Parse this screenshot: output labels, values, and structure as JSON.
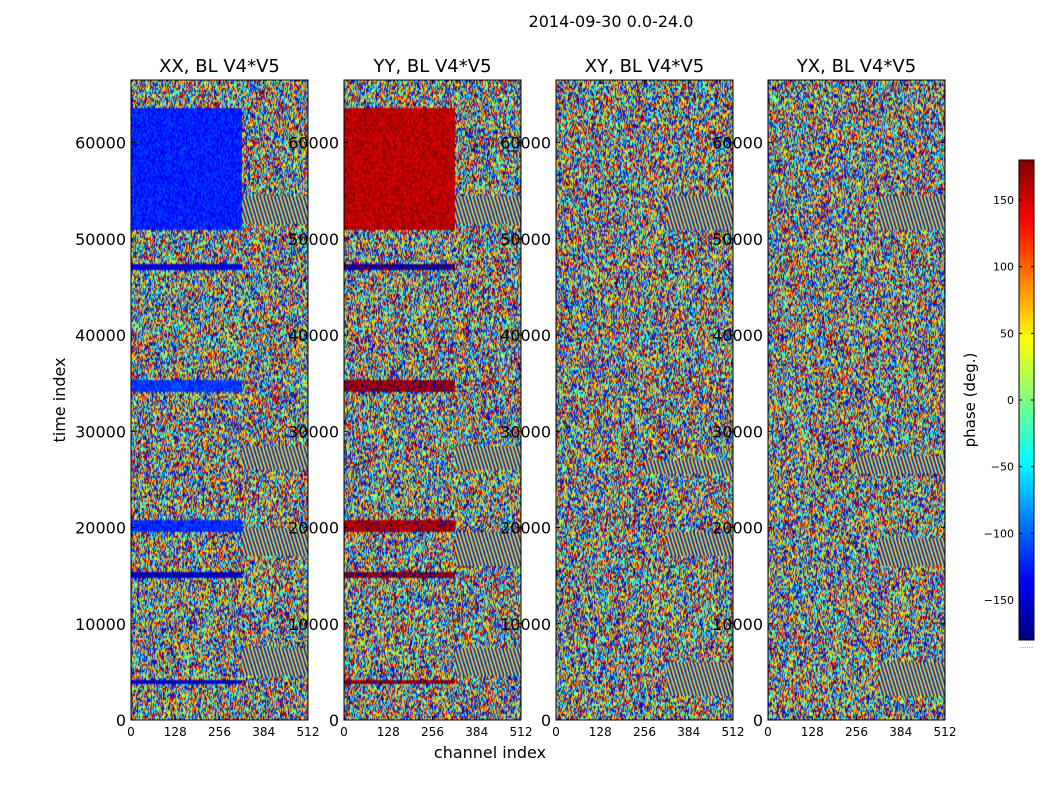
{
  "figure": {
    "suptitle": "2014-09-30 0.0-24.0"
  },
  "chart_data": {
    "type": "heatmap",
    "title": "2014-09-30 0.0-24.0",
    "xlabel": "channel index",
    "ylabel": "time index",
    "xlim": [
      0,
      512
    ],
    "ylim": [
      0,
      66500
    ],
    "x_ticks": [
      0,
      128,
      256,
      384,
      512
    ],
    "y_ticks": [
      0,
      10000,
      20000,
      30000,
      40000,
      50000,
      60000
    ],
    "colorbar": {
      "label": "phase (deg.)",
      "range": [
        -180,
        180
      ],
      "ticks": [
        -150,
        -100,
        -50,
        0,
        50,
        100,
        150
      ],
      "colormap": [
        "#00007f",
        "#0000ff",
        "#007fff",
        "#00ffff",
        "#7fff7f",
        "#ffff00",
        "#ff7f00",
        "#ff0000",
        "#7f0000"
      ],
      "footer_text": "......"
    },
    "panels": [
      {
        "title": "XX, BL V4*V5",
        "coherent_bands": [
          {
            "t0": 51000,
            "t1": 63500,
            "ch0": 0,
            "ch1": 320,
            "phase": -125
          },
          {
            "t0": 34000,
            "t1": 35300,
            "ch0": 0,
            "ch1": 320,
            "phase": -115
          },
          {
            "t0": 19500,
            "t1": 20800,
            "ch0": 0,
            "ch1": 320,
            "phase": -120
          },
          {
            "t0": 14800,
            "t1": 15300,
            "ch0": 0,
            "ch1": 320,
            "phase": -160
          },
          {
            "t0": 46800,
            "t1": 47300,
            "ch0": 0,
            "ch1": 320,
            "phase": -150
          },
          {
            "t0": 3800,
            "t1": 4200,
            "ch0": 0,
            "ch1": 320,
            "phase": -155
          }
        ],
        "fringe_bands": [
          {
            "t0": 51500,
            "t1": 54500,
            "ch0": 320,
            "ch1": 512
          },
          {
            "t0": 26000,
            "t1": 28500,
            "ch0": 320,
            "ch1": 512
          },
          {
            "t0": 17000,
            "t1": 20000,
            "ch0": 320,
            "ch1": 512
          },
          {
            "t0": 4500,
            "t1": 7500,
            "ch0": 320,
            "ch1": 512
          }
        ]
      },
      {
        "title": "YY, BL V4*V5",
        "coherent_bands": [
          {
            "t0": 51000,
            "t1": 63500,
            "ch0": 0,
            "ch1": 320,
            "phase": 160
          },
          {
            "t0": 34000,
            "t1": 35300,
            "ch0": 0,
            "ch1": 320,
            "phase": 170
          },
          {
            "t0": 19500,
            "t1": 20800,
            "ch0": 0,
            "ch1": 320,
            "phase": 165
          },
          {
            "t0": 14800,
            "t1": 15300,
            "ch0": 0,
            "ch1": 320,
            "phase": 175
          },
          {
            "t0": 46800,
            "t1": 47300,
            "ch0": 0,
            "ch1": 320,
            "phase": -170
          },
          {
            "t0": 3800,
            "t1": 4200,
            "ch0": 0,
            "ch1": 320,
            "phase": 170
          }
        ],
        "fringe_bands": [
          {
            "t0": 51500,
            "t1": 54500,
            "ch0": 320,
            "ch1": 512
          },
          {
            "t0": 26000,
            "t1": 28500,
            "ch0": 320,
            "ch1": 512
          },
          {
            "t0": 16000,
            "t1": 19500,
            "ch0": 320,
            "ch1": 512
          },
          {
            "t0": 4500,
            "t1": 7500,
            "ch0": 320,
            "ch1": 512
          }
        ]
      },
      {
        "title": "XY, BL V4*V5",
        "coherent_bands": [],
        "fringe_bands": [
          {
            "t0": 51000,
            "t1": 54500,
            "ch0": 320,
            "ch1": 512
          },
          {
            "t0": 25500,
            "t1": 27000,
            "ch0": 256,
            "ch1": 512
          },
          {
            "t0": 17000,
            "t1": 19500,
            "ch0": 320,
            "ch1": 512
          },
          {
            "t0": 2500,
            "t1": 6000,
            "ch0": 320,
            "ch1": 512
          }
        ]
      },
      {
        "title": "YX, BL V4*V5",
        "coherent_bands": [],
        "fringe_bands": [
          {
            "t0": 51000,
            "t1": 54500,
            "ch0": 320,
            "ch1": 512
          },
          {
            "t0": 25500,
            "t1": 27500,
            "ch0": 256,
            "ch1": 512
          },
          {
            "t0": 16000,
            "t1": 19000,
            "ch0": 320,
            "ch1": 512
          },
          {
            "t0": 2500,
            "t1": 6000,
            "ch0": 320,
            "ch1": 512
          }
        ]
      }
    ]
  }
}
